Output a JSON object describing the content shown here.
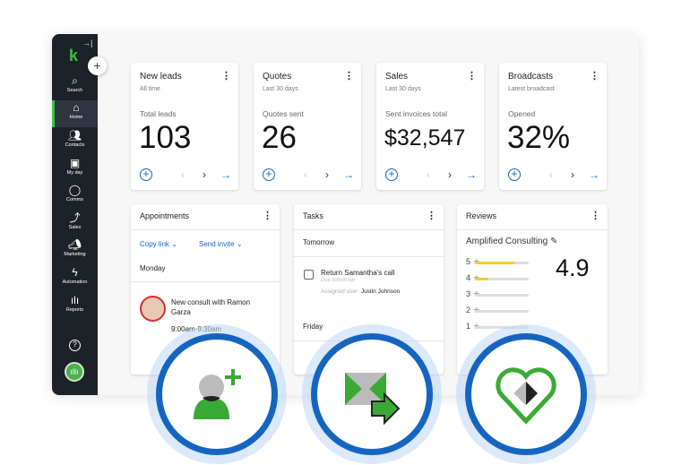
{
  "sidebar": {
    "logo": "k",
    "items": [
      {
        "label": "Search",
        "icon": "search-icon"
      },
      {
        "label": "Home",
        "icon": "home-icon"
      },
      {
        "label": "Contacts",
        "icon": "contacts-icon"
      },
      {
        "label": "My day",
        "icon": "calendar-icon"
      },
      {
        "label": "Comms",
        "icon": "chat-icon"
      },
      {
        "label": "Sales",
        "icon": "sales-icon"
      },
      {
        "label": "Marketing",
        "icon": "megaphone-icon"
      },
      {
        "label": "Automation",
        "icon": "lightning-icon"
      },
      {
        "label": "Reports",
        "icon": "bar-chart-icon"
      }
    ],
    "active": "Home",
    "accent": "#3ec143"
  },
  "kpis": [
    {
      "title": "New leads",
      "period": "All time",
      "label": "Total leads",
      "value": "103"
    },
    {
      "title": "Quotes",
      "period": "Last 30 days",
      "label": "Quotes sent",
      "value": "26"
    },
    {
      "title": "Sales",
      "period": "Last 30 days",
      "label": "Sent invoices total",
      "value": "$32,547"
    },
    {
      "title": "Broadcasts",
      "period": "Latest broadcast",
      "label": "Opened",
      "value": "32%"
    }
  ],
  "appointments": {
    "title": "Appointments",
    "copy_link": "Copy link",
    "send_invite": "Send invite",
    "day": "Monday",
    "event": "New consult with Ramon Garza",
    "time": "9:00am-9:30am"
  },
  "tasks": {
    "title": "Tasks",
    "group1": "Tomorrow",
    "task": "Return Samantha's call",
    "due": "Due tomorrow",
    "assigned_label": "Assigned user:",
    "assigned_user": "Justin Johnson",
    "group2": "Friday"
  },
  "reviews": {
    "title": "Reviews",
    "business": "Amplified Consulting",
    "rating": "4.9",
    "distribution": [
      {
        "stars": "5",
        "fraction": 0.75
      },
      {
        "stars": "4",
        "fraction": 0.25
      },
      {
        "stars": "3",
        "fraction": 0
      },
      {
        "stars": "2",
        "fraction": 0
      },
      {
        "stars": "1",
        "fraction": 0
      }
    ]
  },
  "colors": {
    "primary": "#1565c0",
    "green": "#3ec143",
    "star": "#f6cf2a"
  }
}
